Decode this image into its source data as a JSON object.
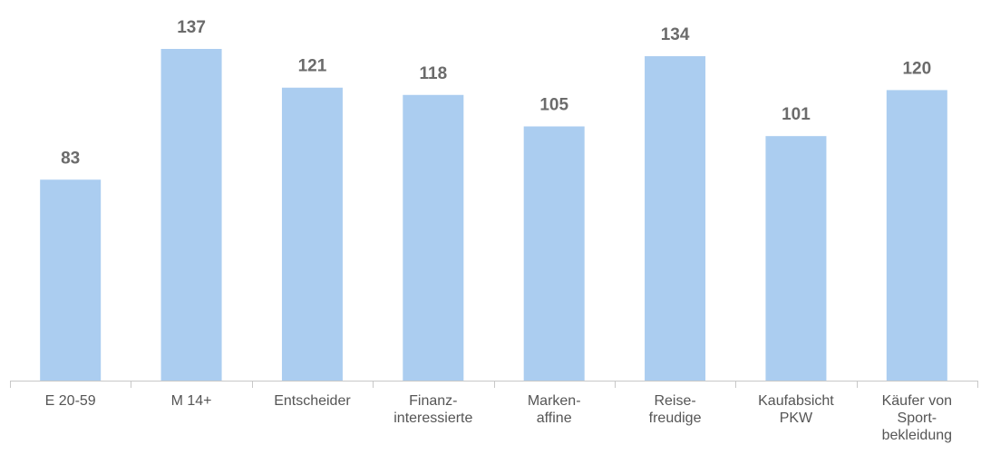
{
  "chart_data": {
    "type": "bar",
    "categories": [
      [
        "E 20-59"
      ],
      [
        "M 14+"
      ],
      [
        "Entscheider"
      ],
      [
        "Finanz-",
        "interessierte"
      ],
      [
        "Marken-",
        "affine"
      ],
      [
        "Reise-",
        "freudige"
      ],
      [
        "Kaufabsicht",
        "PKW"
      ],
      [
        "Käufer von",
        "Sport-",
        "bekleidung"
      ]
    ],
    "values": [
      83,
      137,
      121,
      118,
      105,
      134,
      101,
      120
    ],
    "ylim": [
      0,
      160
    ],
    "grid": false,
    "legend": "none",
    "colors": {
      "bar": "#abcdf0",
      "value_label": "#6b6b6b",
      "category_label": "#555555",
      "axis": "#c8c8c8"
    }
  }
}
